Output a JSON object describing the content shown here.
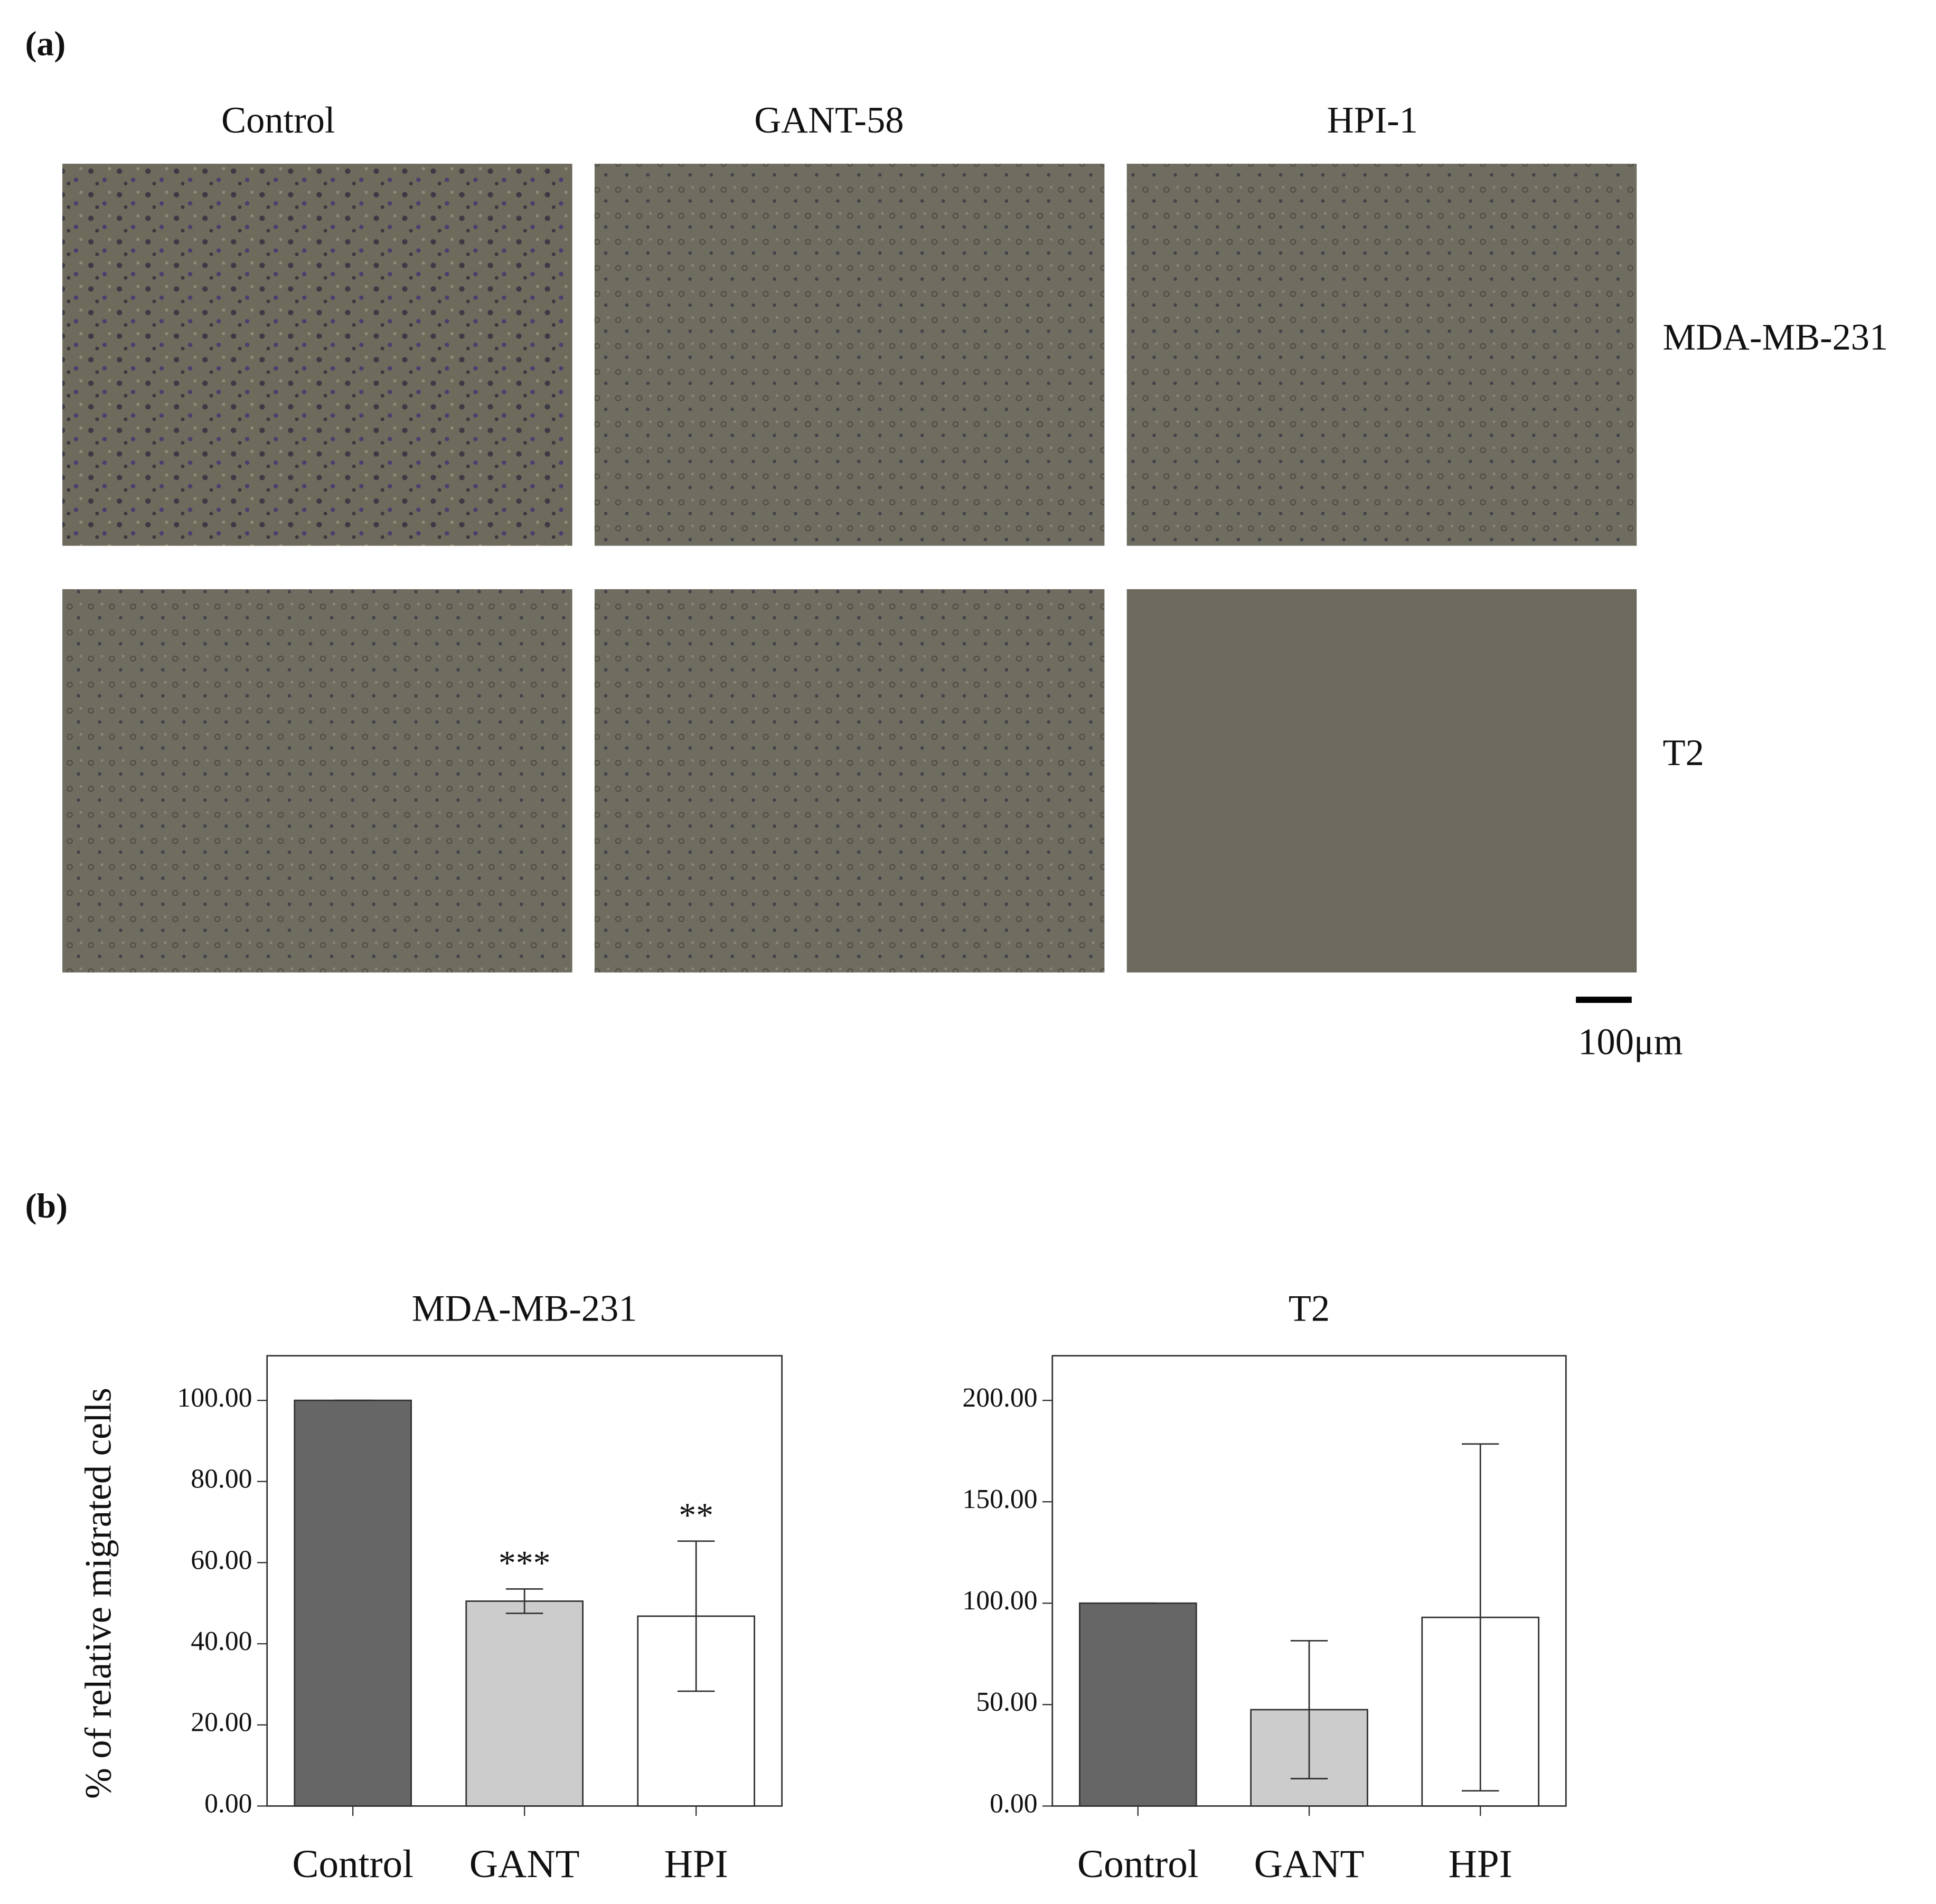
{
  "panel_a": {
    "label": "(a)",
    "columns": [
      "Control",
      "GANT-58",
      "HPI-1"
    ],
    "rows": [
      "MDA-MB-231",
      "T2"
    ],
    "scale_bar": "100μm"
  },
  "panel_b": {
    "label": "(b)"
  },
  "chart_data": [
    {
      "type": "bar",
      "title": "MDA-MB-231",
      "y_label": "% of relative migrated cells",
      "categories": [
        "Control",
        "GANT",
        "HPI"
      ],
      "values": [
        100,
        50.5,
        46.8
      ],
      "errors": [
        0,
        3,
        18.5
      ],
      "annotations": [
        null,
        "***",
        "**"
      ],
      "colors": [
        "#666666",
        "#cccccc",
        "#ffffff"
      ],
      "ylim": [
        0,
        111
      ],
      "yticks": [
        {
          "value": 0,
          "label": "0.00"
        },
        {
          "value": 20,
          "label": "20.00"
        },
        {
          "value": 40,
          "label": "40.00"
        },
        {
          "value": 60,
          "label": "60.00"
        },
        {
          "value": 80,
          "label": "80.00"
        },
        {
          "value": 100,
          "label": "100.00"
        }
      ]
    },
    {
      "type": "bar",
      "title": "T2",
      "categories": [
        "Control",
        "GANT",
        "HPI"
      ],
      "values": [
        100,
        47.5,
        93
      ],
      "errors": [
        0,
        34,
        85.5
      ],
      "colors": [
        "#666666",
        "#cccccc",
        "#ffffff"
      ],
      "ylim": [
        0,
        222
      ],
      "yticks": [
        {
          "value": 0,
          "label": "0.00"
        },
        {
          "value": 50,
          "label": "50.00"
        },
        {
          "value": 100,
          "label": "100.00"
        },
        {
          "value": 150,
          "label": "150.00"
        },
        {
          "value": 200,
          "label": "200.00"
        }
      ]
    }
  ]
}
